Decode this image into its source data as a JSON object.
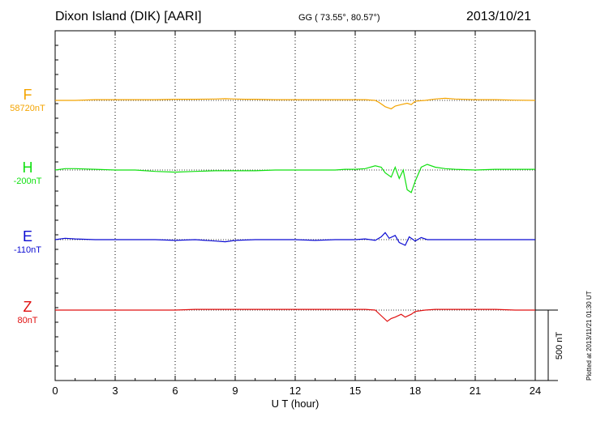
{
  "header": {
    "station": "Dixon Island (DIK)  [AARI]",
    "coords": "GG ( 73.55°,  80.57°)",
    "date": "2013/10/21"
  },
  "footer": {
    "plotted": "Plotted at 2013/11/21 01:30 UT"
  },
  "colors": {
    "F": "#f4a400",
    "H": "#10e010",
    "E": "#0a0ad2",
    "Z": "#e01010"
  },
  "chart_data": {
    "type": "line",
    "xlabel": "U T (hour)",
    "xlim": [
      0,
      24
    ],
    "xticks": [
      0,
      3,
      6,
      9,
      12,
      15,
      18,
      21,
      24
    ],
    "xtick_labels": [
      "0",
      "3",
      "6",
      "9",
      "12",
      "15",
      "18",
      "21",
      "24"
    ],
    "scale_bar_label": "500 nT",
    "scale_bar_nT": 500,
    "series": [
      {
        "name": "F",
        "baseline_label": "58720nT",
        "baseline_nT": 58720,
        "color": "#f4a400",
        "x": [
          0,
          1,
          2,
          3,
          4,
          5,
          6,
          7,
          8,
          8.5,
          9,
          9.5,
          10,
          11,
          12,
          13,
          14,
          15,
          15.5,
          16,
          16.2,
          16.5,
          16.8,
          17,
          17.3,
          17.6,
          17.8,
          18,
          18.5,
          19,
          19.5,
          20,
          21,
          22,
          23,
          24
        ],
        "y": [
          0,
          0,
          5,
          5,
          5,
          5,
          8,
          8,
          10,
          12,
          10,
          8,
          8,
          5,
          5,
          5,
          5,
          5,
          5,
          0,
          -15,
          -45,
          -60,
          -40,
          -30,
          -20,
          -30,
          -5,
          0,
          10,
          15,
          10,
          5,
          5,
          2,
          0
        ]
      },
      {
        "name": "H",
        "baseline_label": "-200nT",
        "baseline_nT": -200,
        "color": "#10e010",
        "x": [
          0,
          0.5,
          1,
          2,
          3,
          4,
          5,
          6,
          7,
          8,
          9,
          10,
          11,
          12,
          13,
          14,
          14.5,
          15,
          15.5,
          16,
          16.3,
          16.5,
          16.8,
          17,
          17.2,
          17.4,
          17.6,
          17.8,
          18,
          18.3,
          18.6,
          19,
          19.5,
          20,
          21,
          22,
          23,
          24
        ],
        "y": [
          0,
          10,
          10,
          5,
          0,
          0,
          -10,
          -15,
          -10,
          -5,
          -5,
          -5,
          0,
          0,
          0,
          0,
          5,
          5,
          10,
          30,
          20,
          -20,
          -50,
          20,
          -60,
          0,
          -140,
          -160,
          -80,
          20,
          40,
          20,
          10,
          5,
          0,
          5,
          5,
          5
        ]
      },
      {
        "name": "E",
        "baseline_label": "-110nT",
        "baseline_nT": -110,
        "color": "#0a0ad2",
        "x": [
          0,
          0.5,
          1,
          2,
          3,
          4,
          5,
          6,
          7,
          8,
          8.5,
          9,
          10,
          11,
          12,
          13,
          14,
          15,
          15.5,
          16,
          16.3,
          16.5,
          16.7,
          17,
          17.2,
          17.5,
          17.7,
          18,
          18.3,
          18.6,
          19,
          20,
          21,
          22,
          23,
          24
        ],
        "y": [
          0,
          10,
          5,
          0,
          0,
          0,
          0,
          -5,
          0,
          -10,
          -15,
          -5,
          0,
          0,
          0,
          -5,
          0,
          0,
          5,
          -5,
          20,
          50,
          10,
          30,
          -20,
          -40,
          20,
          -10,
          15,
          0,
          0,
          0,
          0,
          0,
          0,
          0
        ]
      },
      {
        "name": "Z",
        "baseline_label": "80nT",
        "baseline_nT": 80,
        "color": "#e01010",
        "x": [
          0,
          1,
          2,
          3,
          4,
          5,
          6,
          7,
          8,
          9,
          10,
          11,
          12,
          13,
          14,
          15,
          15.5,
          16,
          16.3,
          16.6,
          16.8,
          17,
          17.3,
          17.5,
          17.8,
          18,
          18.5,
          19,
          20,
          21,
          22,
          23,
          24
        ],
        "y": [
          0,
          0,
          0,
          0,
          0,
          0,
          0,
          5,
          5,
          5,
          5,
          5,
          5,
          5,
          5,
          5,
          5,
          0,
          -40,
          -80,
          -60,
          -50,
          -30,
          -50,
          -30,
          -10,
          0,
          5,
          5,
          5,
          5,
          0,
          0
        ]
      }
    ]
  }
}
